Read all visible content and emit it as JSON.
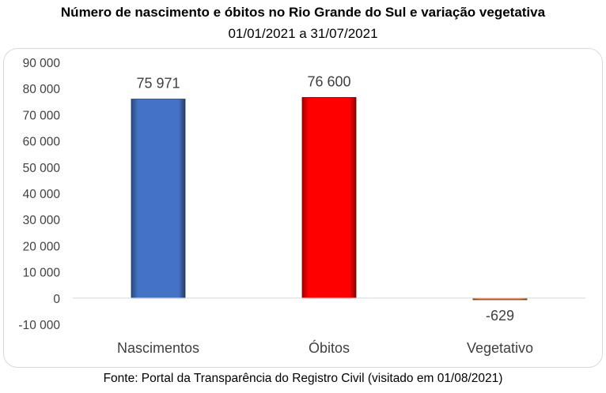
{
  "title": "Número de nascimento e óbitos no Rio Grande do Sul e variação vegetativa",
  "subtitle": "01/01/2021 a 31/07/2021",
  "source": "Fonte: Portal da Transparência do Registro Civil (visitado em 01/08/2021)",
  "colors": {
    "nascimentos": "#4472c4",
    "obitos": "#ff0000",
    "vegetativo": "#ed7d31"
  },
  "chart_data": {
    "type": "bar",
    "title": "Número de nascimento e óbitos no Rio Grande do Sul e variação vegetativa",
    "subtitle": "01/01/2021 a 31/07/2021",
    "categories": [
      "Nascimentos",
      "Óbitos",
      "Vegetativo"
    ],
    "values": [
      75971,
      76600,
      -629
    ],
    "data_labels": [
      "75 971",
      "76 600",
      "-629"
    ],
    "bar_colors": [
      "#4472c4",
      "#ff0000",
      "#ed7d31"
    ],
    "ylim": [
      -10000,
      90000
    ],
    "yticks": [
      90000,
      80000,
      70000,
      60000,
      50000,
      40000,
      30000,
      20000,
      10000,
      0,
      -10000
    ],
    "ytick_labels": [
      "90 000",
      "80 000",
      "70 000",
      "60 000",
      "50 000",
      "40 000",
      "30 000",
      "20 000",
      "10 000",
      "0",
      "-10 000"
    ],
    "xlabel": "",
    "ylabel": "",
    "grid": false,
    "legend": "none"
  }
}
